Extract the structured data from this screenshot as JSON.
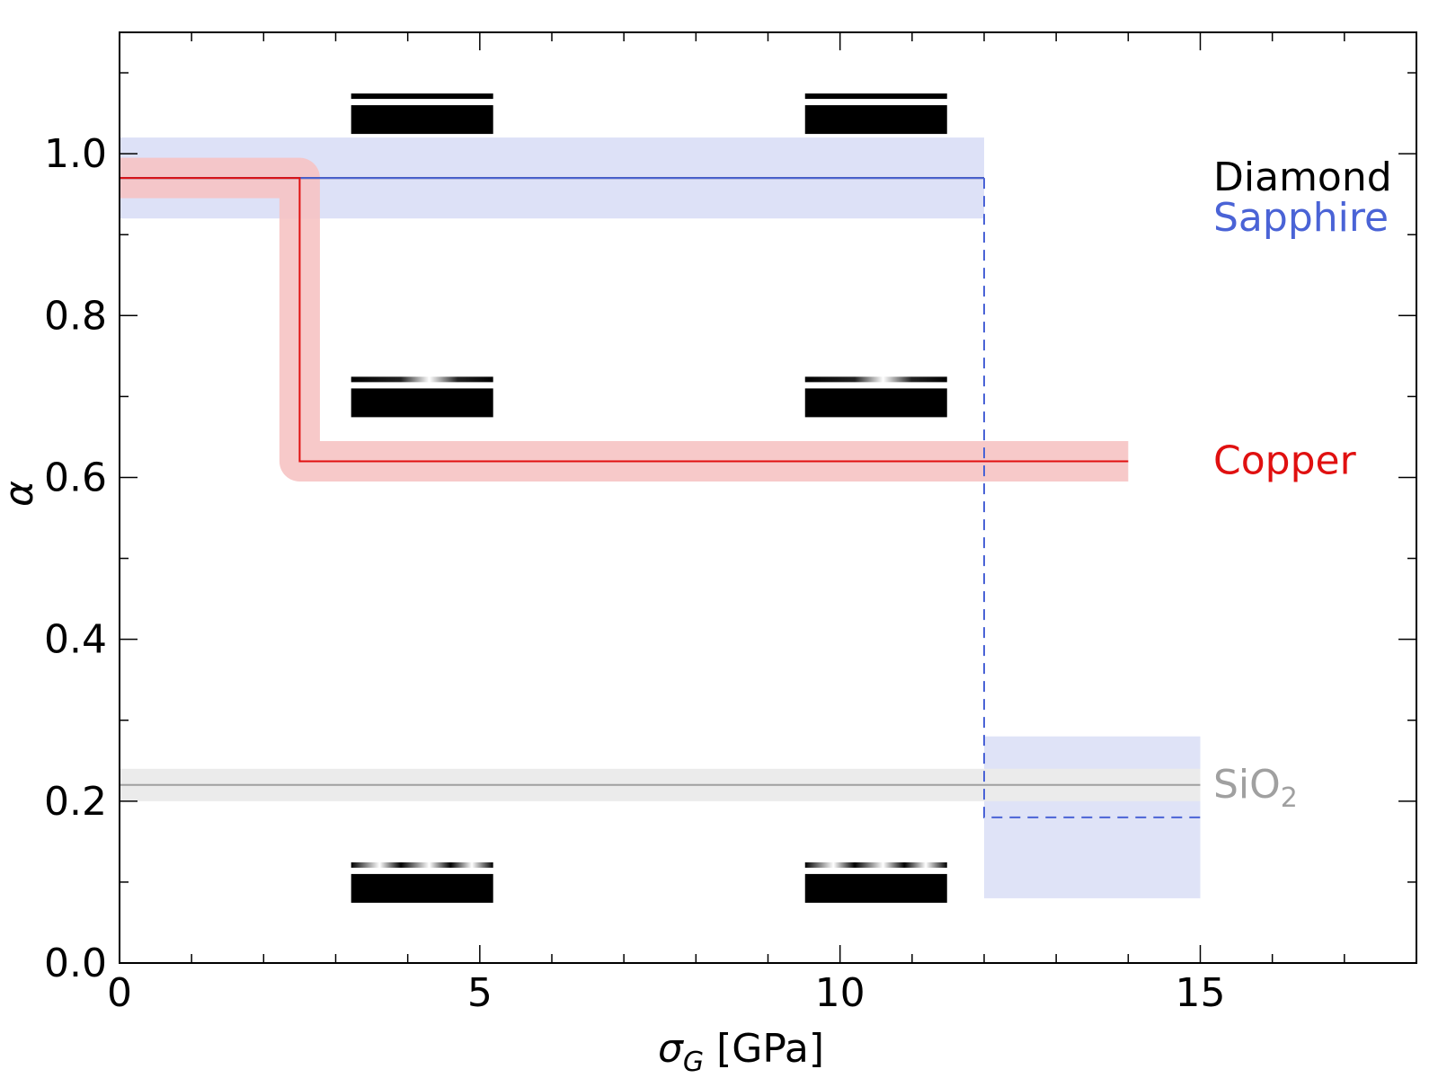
{
  "chart_data": {
    "type": "line",
    "xlabel": "σ_G [GPa]",
    "xlabel_parts": {
      "sym": "σ",
      "sub": "G",
      "unit": " [GPa]"
    },
    "ylabel": "α",
    "xlim": [
      0,
      18
    ],
    "ylim": [
      0,
      1.15
    ],
    "x_ticks": [
      0,
      5,
      10,
      15
    ],
    "x_tick_labels": [
      "0",
      "5",
      "10",
      "15"
    ],
    "x_minor_step": 1,
    "y_ticks": [
      0.0,
      0.2,
      0.4,
      0.6,
      0.8,
      1.0
    ],
    "y_tick_labels": [
      "0.0",
      "0.2",
      "0.4",
      "0.6",
      "0.8",
      "1.0"
    ],
    "y_minor_step": 0.1,
    "grid": false,
    "legend": "inline labels at right",
    "series": [
      {
        "name": "Diamond",
        "color": "#000000",
        "points": [
          [
            0,
            0.97
          ],
          [
            12,
            0.97
          ]
        ],
        "band": [
          0.94,
          1.0
        ],
        "band_color": "#555555"
      },
      {
        "name": "Sapphire",
        "color": "#4a63d6",
        "points": [
          [
            0,
            0.97
          ],
          [
            12,
            0.97
          ]
        ],
        "band": [
          0.92,
          1.02
        ],
        "band_color": "#dde1f7",
        "transition_points": [
          [
            12,
            0.97
          ],
          [
            12,
            0.18
          ],
          [
            15,
            0.18
          ]
        ],
        "high_stress_band": {
          "x": [
            12,
            15
          ],
          "y": [
            0.08,
            0.28
          ]
        }
      },
      {
        "name": "Copper",
        "color": "#e01010",
        "points": [
          [
            0,
            0.97
          ],
          [
            2.5,
            0.97
          ],
          [
            2.5,
            0.62
          ],
          [
            14,
            0.62
          ]
        ],
        "band_width_alpha": 0.05,
        "band_color": "#f6c3c3"
      },
      {
        "name": "SiO₂",
        "color": "#a0a0a0",
        "points": [
          [
            0,
            0.22
          ],
          [
            15,
            0.22
          ]
        ],
        "band": [
          0.2,
          0.24
        ],
        "band_color": "#ebebeb"
      }
    ],
    "labels": [
      {
        "text": "Diamond",
        "color": "#000000",
        "y": 0.97
      },
      {
        "text": "Sapphire",
        "color": "#4a63d6",
        "y": 0.92
      },
      {
        "text": "Copper",
        "color": "#e01010",
        "y": 0.62
      },
      {
        "text": "SiO",
        "sub": "2",
        "color": "#a0a0a0",
        "y": 0.22
      }
    ],
    "surface_icons": [
      {
        "x": 4.2,
        "y": 1.05,
        "kind": "flat"
      },
      {
        "x": 10.5,
        "y": 1.05,
        "kind": "flat"
      },
      {
        "x": 4.2,
        "y": 0.7,
        "kind": "wavy"
      },
      {
        "x": 10.5,
        "y": 0.7,
        "kind": "wavy"
      },
      {
        "x": 4.2,
        "y": 0.1,
        "kind": "wavy-fine"
      },
      {
        "x": 10.5,
        "y": 0.1,
        "kind": "wavy-fine"
      }
    ]
  }
}
